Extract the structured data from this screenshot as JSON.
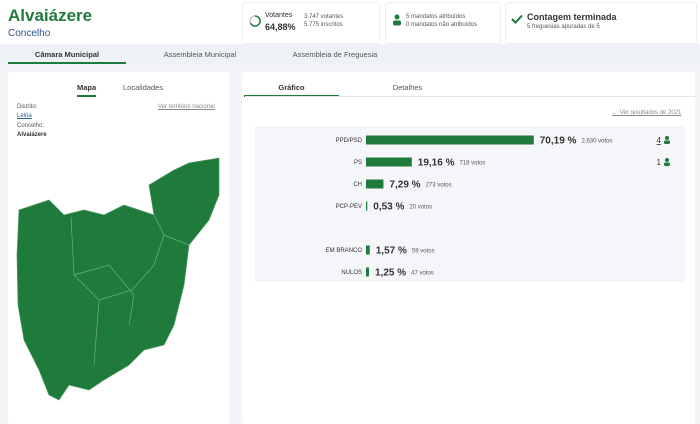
{
  "header": {
    "title": "Alvaiázere",
    "subtitle": "Concelho"
  },
  "stats": {
    "votantes_label": "Votantes",
    "votantes_pct": "64,88%",
    "votantes": "3.747 votantes",
    "inscritos": "5.775 inscritos",
    "mandatos_atribuidos": "5 mandatos atribuídos",
    "mandatos_nao": "0 mandatos não atribuídos",
    "contagem": "Contagem terminada",
    "freguesias": "5 freguesias apuradas de 5"
  },
  "tabs": [
    "Câmara Municipal",
    "Assembleia Municipal",
    "Assembleia de Freguesia"
  ],
  "map_panel": {
    "tabs": [
      "Mapa",
      "Localidades"
    ],
    "link": "Ver território nacional",
    "distrito_label": "Distrito:",
    "distrito": "Leiria",
    "concelho_label": "Concelho:",
    "concelho": "Alvaiázere"
  },
  "results_panel": {
    "tabs": [
      "Gráfico",
      "Detalhes"
    ],
    "link": "Ver resultados de 2021"
  },
  "chart_data": {
    "type": "bar",
    "color": "#1e7b3c",
    "categories": [
      "PPD/PSD",
      "PS",
      "CH",
      "PCP-PEV",
      null,
      "EM BRANCO",
      "NULOS"
    ],
    "values": [
      70.19,
      19.16,
      7.29,
      0.53,
      null,
      1.57,
      1.25
    ],
    "value_labels": [
      "70,19 %",
      "19,16 %",
      "7,29 %",
      "0,53 %",
      null,
      "1,57 %",
      "1,25 %"
    ],
    "votes": [
      2630,
      718,
      273,
      20,
      null,
      59,
      47
    ],
    "votes_labels": [
      "2.630 votos",
      "718 votos",
      "273 votos",
      "20 votos",
      null,
      "59 votos",
      "47 votos"
    ],
    "mandates": [
      4,
      1,
      null,
      null,
      null,
      null,
      null
    ]
  }
}
